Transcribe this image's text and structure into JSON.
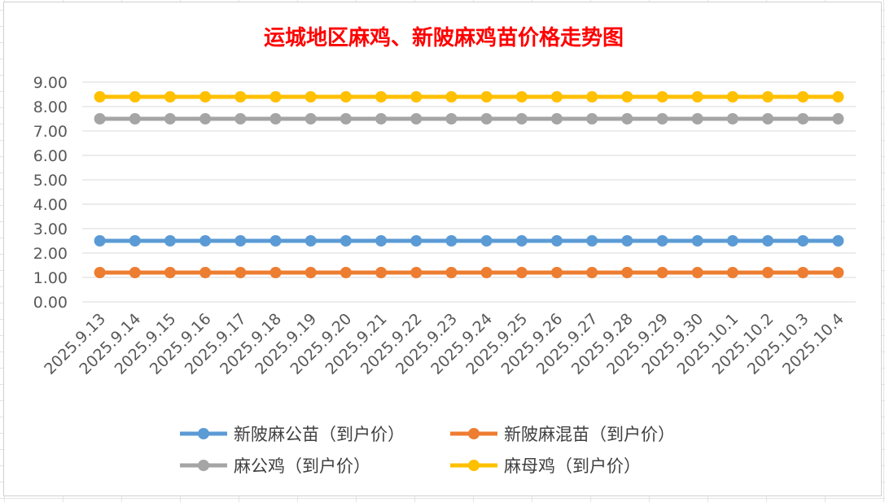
{
  "chart_data": {
    "type": "line",
    "title": "运城地区麻鸡、新陂麻鸡苗价格走势图",
    "categories": [
      "2025.9.13",
      "2025.9.14",
      "2025.9.15",
      "2025.9.16",
      "2025.9.17",
      "2025.9.18",
      "2025.9.19",
      "2025.9.20",
      "2025.9.21",
      "2025.9.22",
      "2025.9.23",
      "2025.9.24",
      "2025.9.25",
      "2025.9.26",
      "2025.9.27",
      "2025.9.28",
      "2025.9.29",
      "2025.9.30",
      "2025.10.1",
      "2025.10.2",
      "2025.10.3",
      "2025.10.4"
    ],
    "series": [
      {
        "name": "新陂麻公苗（到户价）",
        "color": "#5b9bd5",
        "values": [
          2.5,
          2.5,
          2.5,
          2.5,
          2.5,
          2.5,
          2.5,
          2.5,
          2.5,
          2.5,
          2.5,
          2.5,
          2.5,
          2.5,
          2.5,
          2.5,
          2.5,
          2.5,
          2.5,
          2.5,
          2.5,
          2.5
        ]
      },
      {
        "name": "新陂麻混苗（到户价）",
        "color": "#ed7d31",
        "values": [
          1.2,
          1.2,
          1.2,
          1.2,
          1.2,
          1.2,
          1.2,
          1.2,
          1.2,
          1.2,
          1.2,
          1.2,
          1.2,
          1.2,
          1.2,
          1.2,
          1.2,
          1.2,
          1.2,
          1.2,
          1.2,
          1.2
        ]
      },
      {
        "name": "麻公鸡（到户价）",
        "color": "#a5a5a5",
        "values": [
          7.5,
          7.5,
          7.5,
          7.5,
          7.5,
          7.5,
          7.5,
          7.5,
          7.5,
          7.5,
          7.5,
          7.5,
          7.5,
          7.5,
          7.5,
          7.5,
          7.5,
          7.5,
          7.5,
          7.5,
          7.5,
          7.5
        ]
      },
      {
        "name": "麻母鸡（到户价）",
        "color": "#ffc000",
        "values": [
          8.4,
          8.4,
          8.4,
          8.4,
          8.4,
          8.4,
          8.4,
          8.4,
          8.4,
          8.4,
          8.4,
          8.4,
          8.4,
          8.4,
          8.4,
          8.4,
          8.4,
          8.4,
          8.4,
          8.4,
          8.4,
          8.4
        ]
      }
    ],
    "yticks": [
      "0.00",
      "1.00",
      "2.00",
      "3.00",
      "4.00",
      "5.00",
      "6.00",
      "7.00",
      "8.00",
      "9.00"
    ],
    "ylim": [
      0,
      9
    ],
    "grid": true,
    "legend": "bottom"
  }
}
